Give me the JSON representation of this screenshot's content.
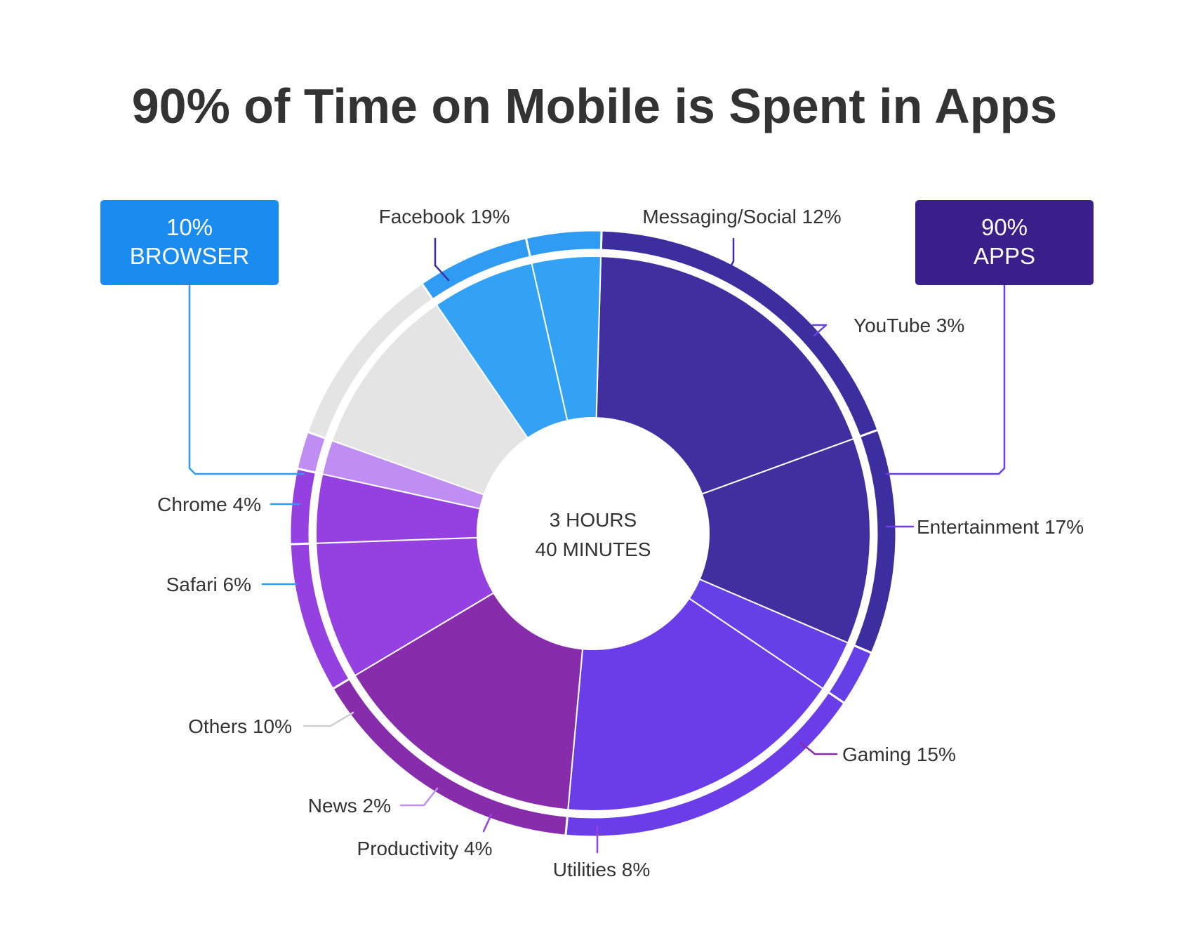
{
  "chart_data": {
    "type": "pie",
    "title": "90% of Time on Mobile is Spent in Apps",
    "center_label": [
      "3 HOURS",
      "40 MINUTES"
    ],
    "groups": [
      {
        "key": "apps",
        "label_lines": [
          "90%",
          "APPS"
        ],
        "value": 90,
        "color": "#3a1f8a"
      },
      {
        "key": "browser",
        "label_lines": [
          "10%",
          "BROWSER"
        ],
        "value": 10,
        "color": "#1a8cf0"
      }
    ],
    "slices": [
      {
        "key": "facebook",
        "name": "Facebook",
        "value": 19,
        "label": "Facebook 19%",
        "color": "#412fa0",
        "ring_color": "#3c2e9e",
        "line_color": "#3c2e9e"
      },
      {
        "key": "messaging",
        "name": "Messaging/Social",
        "value": 12,
        "label": "Messaging/Social 12%",
        "color": "#412fa0",
        "ring_color": "#3c2e9e",
        "line_color": "#3c2e9e"
      },
      {
        "key": "youtube",
        "name": "YouTube",
        "value": 3,
        "label": "YouTube 3%",
        "color": "#6540e6",
        "ring_color": "#6540e6",
        "line_color": "#6540e6"
      },
      {
        "key": "entertainment",
        "name": "Entertainment",
        "value": 17,
        "label": "Entertainment 17%",
        "color": "#6a3de8",
        "ring_color": "#6a3de8",
        "line_color": "#6a3de8"
      },
      {
        "key": "gaming",
        "name": "Gaming",
        "value": 15,
        "label": "Gaming 15%",
        "color": "#872dab",
        "ring_color": "#872dab",
        "line_color": "#872dab"
      },
      {
        "key": "utilities",
        "name": "Utilities",
        "value": 8,
        "label": "Utilities 8%",
        "color": "#9540e0",
        "ring_color": "#9540e0",
        "line_color": "#9540e0"
      },
      {
        "key": "productivity",
        "name": "Productivity",
        "value": 4,
        "label": "Productivity 4%",
        "color": "#9540e0",
        "ring_color": "#9540e0",
        "line_color": "#9540e0"
      },
      {
        "key": "news",
        "name": "News",
        "value": 2,
        "label": "News 2%",
        "color": "#c08ef2",
        "ring_color": "#c08ef2",
        "line_color": "#c08ef2"
      },
      {
        "key": "others",
        "name": "Others",
        "value": 10,
        "label": "Others 10%",
        "color": "#e4e4e4",
        "ring_color": "#e4e4e4",
        "line_color": "#cfcfcf"
      },
      {
        "key": "safari",
        "name": "Safari",
        "value": 6,
        "label": "Safari 6%",
        "color": "#33a2f5",
        "ring_color": "#2f9bf2",
        "line_color": "#2f9bf2"
      },
      {
        "key": "chrome",
        "name": "Chrome",
        "value": 4,
        "label": "Chrome 4%",
        "color": "#33a2f5",
        "ring_color": "#2f9bf2",
        "line_color": "#2f9bf2"
      }
    ]
  }
}
